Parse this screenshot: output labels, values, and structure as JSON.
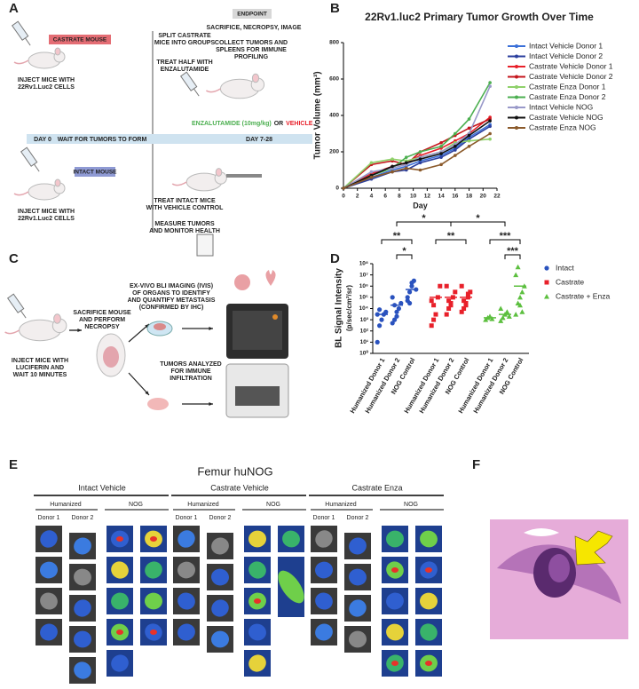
{
  "panel_labels": [
    "A",
    "B",
    "C",
    "D",
    "E",
    "F"
  ],
  "panel_a": {
    "castrate_mouse": "CASTRATE MOUSE",
    "inject_castrate": [
      "INJECT MICE WITH",
      "22Rv1.Luc2 CELLS"
    ],
    "split": [
      "SPLIT CASTRATE",
      "MICE INTO GROUPS"
    ],
    "treat_half": [
      "TREAT HALF WITH",
      "ENZALUTAMIDE"
    ],
    "endpoint": "ENDPOINT",
    "sacrifice": "SACRIFICE, NECROPSY, IMAGE",
    "collect": [
      "COLLECT TUMORS AND",
      "SPLEENS FOR IMMUNE",
      "PROFILING"
    ],
    "treatment": {
      "drug": "ENZALUTAMIDE (10mg/kg)",
      "or": "OR",
      "vehicle": "VEHICLE"
    },
    "timeline": [
      "DAY 0",
      "WAIT FOR TUMORS TO FORM",
      "DAY 7-28"
    ],
    "intact_mouse": "INTACT MOUSE",
    "inject_intact": [
      "INJECT MICE WITH",
      "22Rv1.Luc2 CELLS"
    ],
    "treat_intact": [
      "TREAT INTACT MICE",
      "WITH VEHICLE CONTROL"
    ],
    "measure": [
      "MEASURE TUMORS",
      "AND MONITOR HEALTH"
    ]
  },
  "panel_c": {
    "imaging": [
      "EX-VIVO BLI IMAGING (IVIS)",
      "OF ORGANS TO IDENTIFY",
      "AND QUANTIFY METASTASIS",
      "(CONFIRMED BY IHC)"
    ],
    "sacrifice": [
      "SACRIFICE MOUSE",
      "AND PERFORM",
      "NECROPSY"
    ],
    "inject": [
      "INJECT MICE WITH",
      "LUCIFERIN AND",
      "WAIT 10 MINUTES"
    ],
    "tumors": [
      "TUMORS ANALYZED",
      "FOR IMMUNE",
      "INFILTRATION"
    ]
  },
  "chart_data": [
    {
      "type": "line",
      "title": "22Rv1.luc2 Primary Tumor Growth Over Time",
      "x_label": "Day",
      "y_label": "Tumor Volume (mm³)",
      "x": [
        0,
        4,
        7,
        9,
        11,
        14,
        16,
        18,
        21
      ],
      "xlim": [
        0,
        22
      ],
      "xticks": [
        0,
        2,
        4,
        6,
        8,
        10,
        12,
        14,
        16,
        18,
        20,
        22
      ],
      "ylim": [
        0,
        800
      ],
      "yticks": [
        0,
        200,
        400,
        600,
        800
      ],
      "series": [
        {
          "name": "Intact Vehicle Donor 1",
          "color": "#3a6fd8",
          "values": [
            0,
            60,
            100,
            120,
            150,
            180,
            220,
            280,
            350
          ]
        },
        {
          "name": "Intact Vehicle Donor 2",
          "color": "#2b3f9e",
          "values": [
            0,
            50,
            90,
            100,
            140,
            170,
            210,
            270,
            340
          ]
        },
        {
          "name": "Castrate Vehicle Donor 1",
          "color": "#e8202a",
          "values": [
            0,
            80,
            120,
            140,
            180,
            220,
            260,
            300,
            390
          ]
        },
        {
          "name": "Castrate Vehicle Donor 2",
          "color": "#c4161c",
          "values": [
            0,
            130,
            150,
            130,
            200,
            250,
            290,
            330,
            380
          ]
        },
        {
          "name": "Castrate Enza Donor 1",
          "color": "#8fd16a",
          "values": [
            0,
            140,
            160,
            150,
            170,
            200,
            250,
            260,
            270
          ]
        },
        {
          "name": "Castrate Enza Donor 2",
          "color": "#4caf50",
          "values": [
            0,
            70,
            110,
            170,
            200,
            230,
            300,
            380,
            580
          ]
        },
        {
          "name": "Intact Vehicle NOG",
          "color": "#9999c9",
          "values": [
            0,
            90,
            110,
            130,
            170,
            200,
            240,
            300,
            560
          ]
        },
        {
          "name": "Castrate Vehicle NOG",
          "color": "#111111",
          "values": [
            0,
            70,
            120,
            140,
            160,
            190,
            230,
            290,
            370
          ]
        },
        {
          "name": "Castrate Enza NOG",
          "color": "#8b5a2b",
          "values": [
            0,
            60,
            90,
            110,
            100,
            130,
            180,
            230,
            300
          ]
        }
      ]
    },
    {
      "type": "strip",
      "y_label": "BL Signal Intensity",
      "y_unit": "(p/sec/cm²/sr)",
      "log_y": true,
      "ylim": [
        1,
        100000000
      ],
      "yticks": [
        {
          "value": 1,
          "label": "10⁰"
        },
        {
          "value": 10,
          "label": "10¹"
        },
        {
          "value": 100,
          "label": "10²"
        },
        {
          "value": 1000,
          "label": "10³"
        },
        {
          "value": 10000,
          "label": "10⁴"
        },
        {
          "value": 100000,
          "label": "10⁵"
        },
        {
          "value": 1000000,
          "label": "10⁶"
        },
        {
          "value": 10000000,
          "label": "10⁷"
        },
        {
          "value": 100000000,
          "label": "10⁸"
        }
      ],
      "significance": [
        "**",
        "*",
        "*",
        "**",
        "*",
        "***",
        "***"
      ],
      "series": [
        {
          "name": "Intact",
          "color": "#2a52be",
          "marker": "circle",
          "categories": [
            "Humanized Donor 1",
            "Humanized Donor 2",
            "NOG Control"
          ],
          "values": [
            [
              10,
              300,
              1000,
              3000,
              5000,
              3000,
              8000
            ],
            [
              500,
              1000,
              2000,
              10000,
              30000,
              100000,
              20000,
              5000
            ],
            [
              100000,
              300000,
              1000000,
              3000000,
              500000,
              50000,
              30000,
              2000000
            ]
          ],
          "means": [
            3000,
            20000,
            500000
          ]
        },
        {
          "name": "Castrate",
          "color": "#e8202a",
          "marker": "square",
          "categories": [
            "Humanized Donor 1",
            "Humanized Donor 2",
            "NOG Control"
          ],
          "values": [
            [
              300,
              1000,
              3000,
              100000,
              1000000,
              50000,
              20000
            ],
            [
              3000,
              10000,
              30000,
              100000,
              300000,
              1000000,
              50000,
              20000
            ],
            [
              5000,
              10000,
              30000,
              100000,
              300000,
              1000000,
              50000,
              20000,
              200000
            ]
          ],
          "means": [
            100000,
            100000,
            100000
          ]
        },
        {
          "name": "Castrate + Enza",
          "color": "#5cbf3f",
          "marker": "triangle",
          "categories": [
            "Humanized Donor 1",
            "Humanized Donor 2",
            "NOG Control"
          ],
          "values": [
            [
              1000,
              1500,
              2000,
              1200
            ],
            [
              800,
              1500,
              3000,
              5000,
              2000,
              10000
            ],
            [
              3000,
              30000,
              100000,
              300000,
              1000000,
              10000000,
              50000000,
              20000,
              5000
            ]
          ],
          "means": [
            1500,
            3000,
            1000000
          ]
        }
      ]
    }
  ],
  "panel_e": {
    "title": "Femur huNOG",
    "groups": [
      {
        "name": "Intact Vehicle",
        "humanized": "Humanized",
        "nog": "NOG",
        "donor_1": "Donor 1",
        "donor_2": "Donor 2"
      },
      {
        "name": "Castrate Vehicle",
        "humanized": "Humanized",
        "nog": "NOG",
        "donor_1": "Donor 1",
        "donor_2": "Donor 2"
      },
      {
        "name": "Castrate Enza",
        "humanized": "Humanized",
        "nog": "NOG",
        "donor_1": "Donor 1",
        "donor_2": "Donor 2"
      }
    ]
  }
}
